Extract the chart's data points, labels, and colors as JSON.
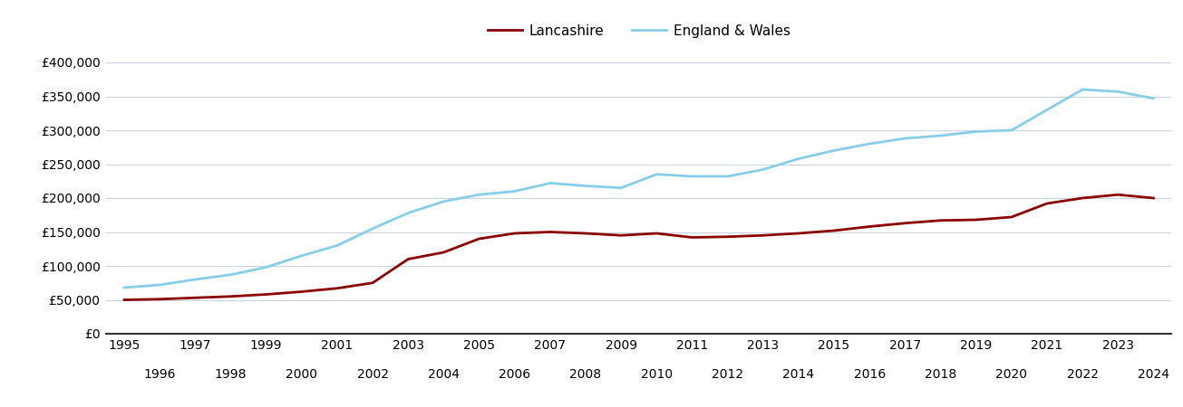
{
  "lancashire": {
    "years": [
      1995,
      1996,
      1997,
      1998,
      1999,
      2000,
      2001,
      2002,
      2003,
      2004,
      2005,
      2006,
      2007,
      2008,
      2009,
      2010,
      2011,
      2012,
      2013,
      2014,
      2015,
      2016,
      2017,
      2018,
      2019,
      2020,
      2021,
      2022,
      2023,
      2024
    ],
    "values": [
      50000,
      51000,
      53000,
      55000,
      58000,
      62000,
      67000,
      75000,
      110000,
      120000,
      140000,
      148000,
      150000,
      148000,
      145000,
      148000,
      142000,
      143000,
      145000,
      148000,
      152000,
      158000,
      163000,
      167000,
      168000,
      172000,
      192000,
      200000,
      205000,
      200000
    ]
  },
  "england_wales": {
    "years": [
      1995,
      1996,
      1997,
      1998,
      1999,
      2000,
      2001,
      2002,
      2003,
      2004,
      2005,
      2006,
      2007,
      2008,
      2009,
      2010,
      2011,
      2012,
      2013,
      2014,
      2015,
      2016,
      2017,
      2018,
      2019,
      2020,
      2021,
      2022,
      2023,
      2024
    ],
    "values": [
      68000,
      72000,
      80000,
      87000,
      98000,
      115000,
      130000,
      155000,
      178000,
      195000,
      205000,
      210000,
      222000,
      218000,
      215000,
      235000,
      232000,
      232000,
      242000,
      258000,
      270000,
      280000,
      288000,
      292000,
      298000,
      300000,
      330000,
      360000,
      357000,
      347000
    ]
  },
  "lancashire_color": "#8B0000",
  "england_wales_color": "#87CEEB",
  "background_color": "#ffffff",
  "grid_color": "#c8d4e0",
  "legend_labels": [
    "Lancashire",
    "England & Wales"
  ],
  "ylim": [
    0,
    420000
  ],
  "yticks": [
    0,
    50000,
    100000,
    150000,
    200000,
    250000,
    300000,
    350000,
    400000
  ],
  "ytick_labels": [
    "£0",
    "£50,000",
    "£100,000",
    "£150,000",
    "£200,000",
    "£250,000",
    "£300,000",
    "£350,000",
    "£400,000"
  ],
  "xlim": [
    1994.5,
    2024.5
  ],
  "odd_xticks": [
    1995,
    1997,
    1999,
    2001,
    2003,
    2005,
    2007,
    2009,
    2011,
    2013,
    2015,
    2017,
    2019,
    2021,
    2023
  ],
  "even_xticks": [
    1996,
    1998,
    2000,
    2002,
    2004,
    2006,
    2008,
    2010,
    2012,
    2014,
    2016,
    2018,
    2020,
    2022,
    2024
  ],
  "tick_fontsize": 10,
  "legend_fontsize": 11
}
